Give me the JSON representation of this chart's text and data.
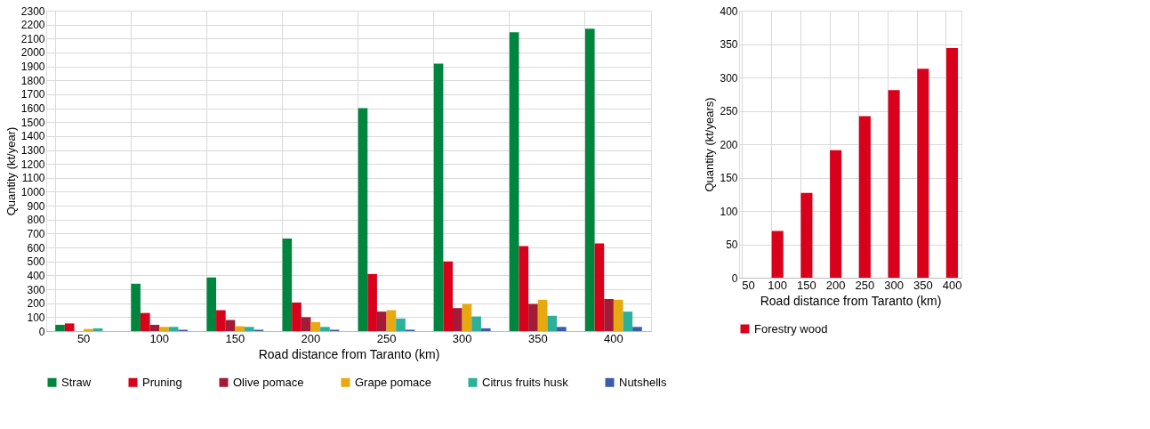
{
  "chart_data": [
    {
      "type": "bar",
      "xlabel": "Road distance from Taranto (km)",
      "ylabel": "Quantity (kt/year)",
      "categories": [
        "50",
        "100",
        "150",
        "200",
        "250",
        "300",
        "350",
        "400"
      ],
      "ylim": [
        0,
        2300
      ],
      "yticks": [
        0,
        100,
        200,
        300,
        400,
        500,
        600,
        700,
        800,
        900,
        1000,
        1100,
        1200,
        1300,
        1400,
        1500,
        1600,
        1700,
        1800,
        1900,
        2000,
        2100,
        2200,
        2300
      ],
      "grid": true,
      "legend": "bottom",
      "series": [
        {
          "name": "Straw",
          "color": "#00853f",
          "values": [
            45,
            340,
            385,
            665,
            1600,
            1920,
            2145,
            2170
          ]
        },
        {
          "name": "Pruning",
          "color": "#d9001b",
          "values": [
            55,
            130,
            150,
            205,
            410,
            500,
            610,
            630
          ]
        },
        {
          "name": "Olive pomace",
          "color": "#a31c37",
          "values": [
            0,
            45,
            80,
            100,
            140,
            165,
            195,
            230
          ]
        },
        {
          "name": "Grape pomace",
          "color": "#e6a910",
          "values": [
            15,
            30,
            35,
            65,
            150,
            195,
            225,
            225
          ]
        },
        {
          "name": "Citrus fruits husk",
          "color": "#2bb09a",
          "values": [
            20,
            30,
            30,
            30,
            90,
            105,
            110,
            140
          ]
        },
        {
          "name": "Nutshells",
          "color": "#3a5daa",
          "values": [
            0,
            10,
            10,
            10,
            10,
            20,
            30,
            30
          ]
        }
      ]
    },
    {
      "type": "bar",
      "xlabel": "Road distance from Taranto (km)",
      "ylabel": "Quantity (kt/years)",
      "categories": [
        "50",
        "100",
        "150",
        "200",
        "250",
        "300",
        "350",
        "400"
      ],
      "ylim": [
        0,
        400
      ],
      "yticks": [
        0,
        50,
        100,
        150,
        200,
        250,
        300,
        350,
        400
      ],
      "grid": true,
      "legend": "bottom",
      "series": [
        {
          "name": "Forestry wood",
          "color": "#d9001b",
          "values": [
            0,
            70,
            127,
            191,
            242,
            281,
            313,
            344
          ]
        }
      ]
    }
  ]
}
